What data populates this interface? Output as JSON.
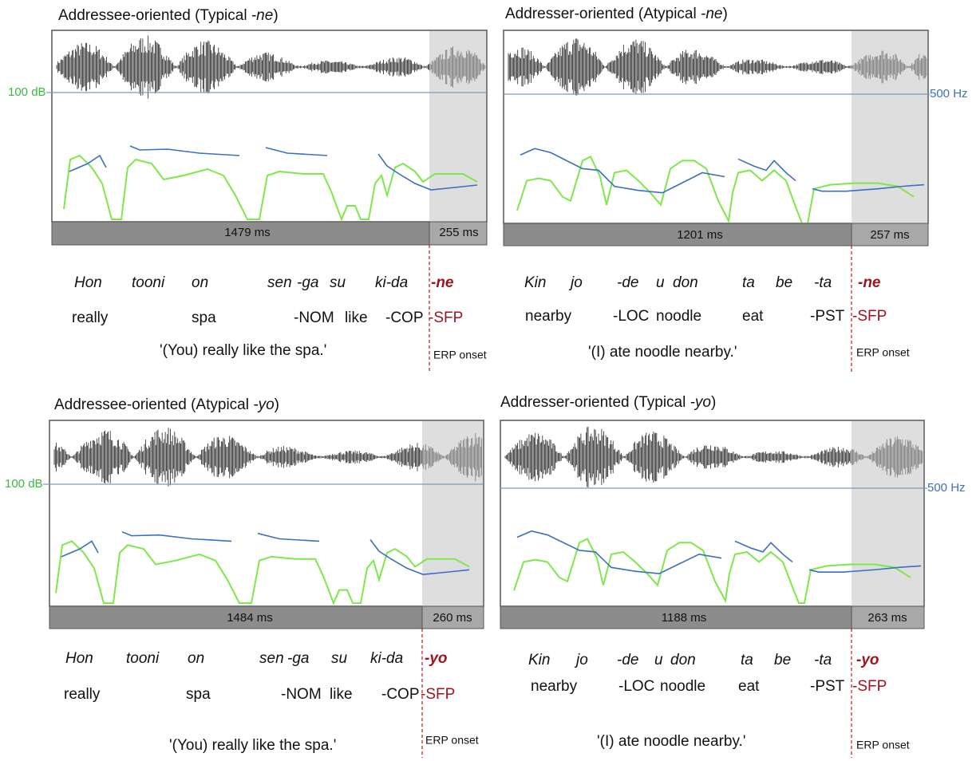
{
  "panels": [
    {
      "title": [
        "Addressee-oriented (Typical ",
        "-ne",
        ")"
      ],
      "level_label": "100 dB",
      "durations": [
        "1479 ms",
        "255 ms"
      ],
      "gloss_line1": [
        "Hon",
        "tooni",
        "on",
        "sen",
        "-ga",
        "su",
        "ki-da",
        "-ne"
      ],
      "gloss_line2": [
        "really",
        "spa",
        "-NOM",
        "like",
        "-COP",
        "-SFP"
      ],
      "translation": "'(You) really like the spa.'",
      "onset_label": "ERP onset"
    },
    {
      "title": [
        "Addresser-oriented (Atypical ",
        "-ne",
        ")"
      ],
      "level_label": "500 Hz",
      "durations": [
        "1201 ms",
        "257 ms"
      ],
      "gloss_line1": [
        "Kin",
        "jo",
        "-de",
        "u",
        "don",
        "ta",
        "be",
        "-ta",
        "-ne"
      ],
      "gloss_line2": [
        "nearby",
        "-LOC",
        "noodle",
        "eat",
        "-PST",
        "-SFP"
      ],
      "translation": "'(I) ate noodle nearby.'",
      "onset_label": "ERP onset"
    },
    {
      "title": [
        "Addressee-oriented (Atypical ",
        "-yo",
        ")"
      ],
      "level_label": "100 dB",
      "durations": [
        "1484 ms",
        "260 ms"
      ],
      "gloss_line1": [
        "Hon",
        "tooni",
        "on",
        "sen",
        "-ga",
        "su",
        "ki-da",
        "-yo"
      ],
      "gloss_line2": [
        "really",
        "spa",
        "-NOM",
        "like",
        "-COP",
        "-SFP"
      ],
      "translation": "'(You) really like the spa.'",
      "onset_label": "ERP onset"
    },
    {
      "title": [
        "Addresser-oriented (Typical ",
        "-yo",
        ")"
      ],
      "level_label": "500 Hz",
      "durations": [
        "1188 ms",
        "263 ms"
      ],
      "gloss_line1": [
        "Kin",
        "jo",
        "-de",
        "u",
        "don",
        "ta",
        "be",
        "-ta",
        "-yo"
      ],
      "gloss_line2": [
        "nearby",
        "-LOC",
        "noodle",
        "eat",
        "-PST",
        "-SFP"
      ],
      "translation": "'(I) ate noodle nearby.'",
      "onset_label": "ERP onset"
    }
  ]
}
